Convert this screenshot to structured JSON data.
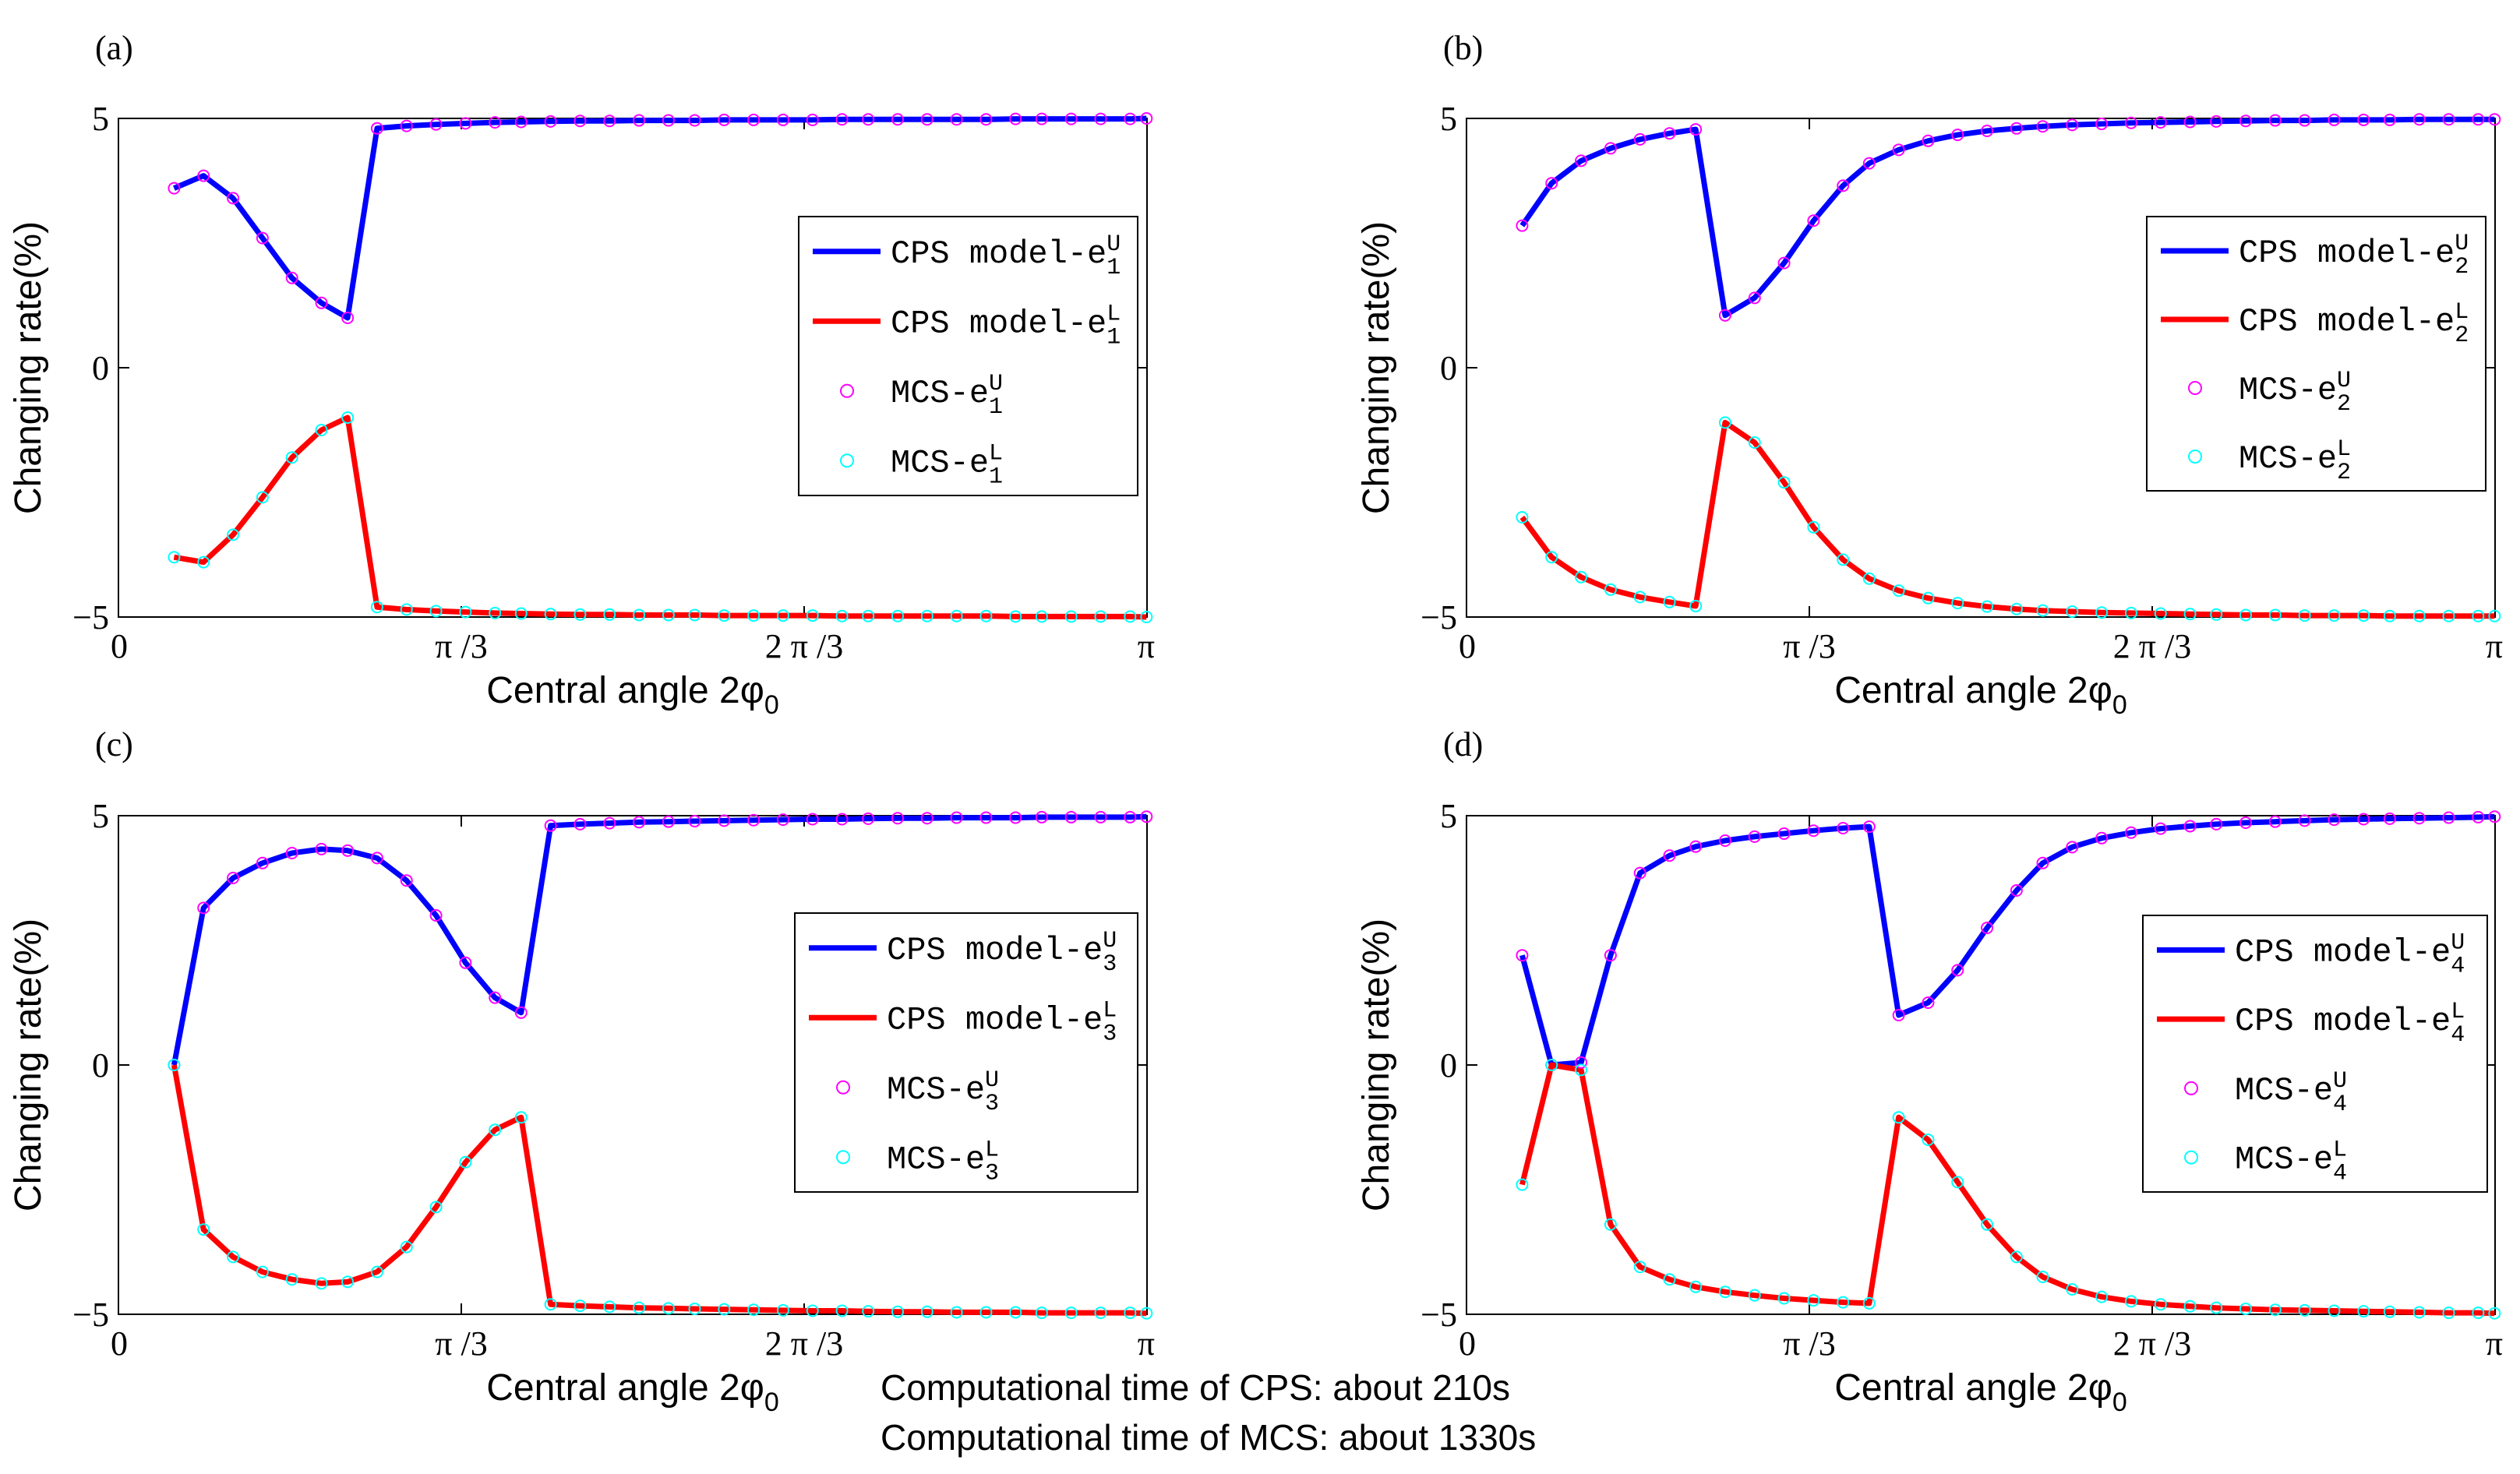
{
  "colors": {
    "cps_upper": "#0000ff",
    "cps_lower": "#ff0000",
    "mcs_upper": "#ff00ff",
    "mcs_lower": "#00ffff"
  },
  "footnote": {
    "line1": "Computational time of CPS: about 210s",
    "line2": "Computational time of MCS: about 1330s"
  },
  "chart_data": [
    {
      "panel_label": "(a)",
      "type": "line",
      "xlabel": "Central angle 2φ",
      "xlabel_sub": "0",
      "ylabel": "Changing rate(%)",
      "xlim": [
        0,
        3.14159
      ],
      "ylim": [
        -5,
        5
      ],
      "xticks": [
        0,
        1.0472,
        2.0944,
        3.14159
      ],
      "xtick_labels": [
        "0",
        "π /3",
        "2 π /3",
        "π"
      ],
      "yticks": [
        -5,
        0,
        5
      ],
      "ytick_labels": [
        "−5",
        "0",
        "5"
      ],
      "legend": [
        {
          "label": "CPS model-e",
          "sup": "U",
          "sub": "1",
          "kind": "line",
          "series": "cps_upper"
        },
        {
          "label": "CPS model-e",
          "sup": "L",
          "sub": "1",
          "kind": "line",
          "series": "cps_lower"
        },
        {
          "label": "MCS-e",
          "sup": "U",
          "sub": "1",
          "kind": "marker",
          "series": "mcs_upper"
        },
        {
          "label": "MCS-e",
          "sup": "L",
          "sub": "1",
          "kind": "marker",
          "series": "mcs_lower"
        }
      ],
      "x": [
        0.17,
        0.26,
        0.35,
        0.44,
        0.53,
        0.62,
        0.7,
        0.79,
        0.88,
        0.97,
        1.06,
        1.15,
        1.23,
        1.32,
        1.41,
        1.5,
        1.59,
        1.68,
        1.76,
        1.85,
        1.94,
        2.03,
        2.12,
        2.21,
        2.29,
        2.38,
        2.47,
        2.56,
        2.65,
        2.74,
        2.82,
        2.91,
        3.0,
        3.09,
        3.14
      ],
      "series": [
        {
          "name": "CPS model-e1U",
          "key": "cps_upper",
          "values": [
            3.6,
            3.85,
            3.4,
            2.6,
            1.8,
            1.3,
            1.0,
            4.8,
            4.85,
            4.88,
            4.9,
            4.92,
            4.93,
            4.94,
            4.95,
            4.95,
            4.96,
            4.96,
            4.96,
            4.97,
            4.97,
            4.97,
            4.97,
            4.98,
            4.98,
            4.98,
            4.98,
            4.98,
            4.98,
            4.99,
            4.99,
            4.99,
            4.99,
            4.99,
            5.0
          ]
        },
        {
          "name": "CPS model-e1L",
          "key": "cps_lower",
          "values": [
            -3.8,
            -3.9,
            -3.35,
            -2.6,
            -1.8,
            -1.25,
            -1.0,
            -4.8,
            -4.85,
            -4.88,
            -4.9,
            -4.92,
            -4.93,
            -4.94,
            -4.95,
            -4.95,
            -4.96,
            -4.96,
            -4.96,
            -4.97,
            -4.97,
            -4.97,
            -4.97,
            -4.98,
            -4.98,
            -4.98,
            -4.98,
            -4.98,
            -4.98,
            -4.99,
            -4.99,
            -4.99,
            -4.99,
            -4.99,
            -5.0
          ]
        }
      ]
    },
    {
      "panel_label": "(b)",
      "type": "line",
      "xlabel": "Central angle 2φ",
      "xlabel_sub": "0",
      "ylabel": "Changing rate(%)",
      "xlim": [
        0,
        3.14159
      ],
      "ylim": [
        -5,
        5
      ],
      "xticks": [
        0,
        1.0472,
        2.0944,
        3.14159
      ],
      "xtick_labels": [
        "0",
        "π /3",
        "2 π /3",
        "π"
      ],
      "yticks": [
        -5,
        0,
        5
      ],
      "ytick_labels": [
        "−5",
        "0",
        "5"
      ],
      "legend": [
        {
          "label": "CPS model-e",
          "sup": "U",
          "sub": "2",
          "kind": "line",
          "series": "cps_upper"
        },
        {
          "label": "CPS model-e",
          "sup": "L",
          "sub": "2",
          "kind": "line",
          "series": "cps_lower"
        },
        {
          "label": "MCS-e",
          "sup": "U",
          "sub": "2",
          "kind": "marker",
          "series": "mcs_upper"
        },
        {
          "label": "MCS-e",
          "sup": "L",
          "sub": "2",
          "kind": "marker",
          "series": "mcs_lower"
        }
      ],
      "x": [
        0.17,
        0.26,
        0.35,
        0.44,
        0.53,
        0.62,
        0.7,
        0.79,
        0.88,
        0.97,
        1.06,
        1.15,
        1.23,
        1.32,
        1.41,
        1.5,
        1.59,
        1.68,
        1.76,
        1.85,
        1.94,
        2.03,
        2.12,
        2.21,
        2.29,
        2.38,
        2.47,
        2.56,
        2.65,
        2.74,
        2.82,
        2.91,
        3.0,
        3.09,
        3.14
      ],
      "series": [
        {
          "name": "CPS model-e2U",
          "key": "cps_upper",
          "values": [
            2.85,
            3.7,
            4.15,
            4.4,
            4.58,
            4.7,
            4.78,
            1.05,
            1.4,
            2.1,
            2.95,
            3.65,
            4.1,
            4.37,
            4.55,
            4.67,
            4.75,
            4.8,
            4.84,
            4.87,
            4.89,
            4.91,
            4.92,
            4.93,
            4.94,
            4.95,
            4.96,
            4.96,
            4.97,
            4.97,
            4.97,
            4.98,
            4.98,
            4.98,
            4.98
          ]
        },
        {
          "name": "CPS model-e2L",
          "key": "cps_lower",
          "values": [
            -3.0,
            -3.8,
            -4.2,
            -4.45,
            -4.6,
            -4.7,
            -4.78,
            -1.1,
            -1.5,
            -2.3,
            -3.2,
            -3.85,
            -4.23,
            -4.47,
            -4.62,
            -4.72,
            -4.79,
            -4.84,
            -4.87,
            -4.89,
            -4.91,
            -4.92,
            -4.93,
            -4.94,
            -4.95,
            -4.96,
            -4.96,
            -4.97,
            -4.97,
            -4.97,
            -4.98,
            -4.98,
            -4.98,
            -4.98,
            -4.98
          ]
        }
      ]
    },
    {
      "panel_label": "(c)",
      "type": "line",
      "xlabel": "Central angle 2φ",
      "xlabel_sub": "0",
      "ylabel": "Changing rate(%)",
      "xlim": [
        0,
        3.14159
      ],
      "ylim": [
        -5,
        5
      ],
      "xticks": [
        0,
        1.0472,
        2.0944,
        3.14159
      ],
      "xtick_labels": [
        "0",
        "π /3",
        "2 π /3",
        "π"
      ],
      "yticks": [
        -5,
        0,
        5
      ],
      "ytick_labels": [
        "−5",
        "0",
        "5"
      ],
      "legend": [
        {
          "label": "CPS model-e",
          "sup": "U",
          "sub": "3",
          "kind": "line",
          "series": "cps_upper"
        },
        {
          "label": "CPS model-e",
          "sup": "L",
          "sub": "3",
          "kind": "line",
          "series": "cps_lower"
        },
        {
          "label": "MCS-e",
          "sup": "U",
          "sub": "3",
          "kind": "marker",
          "series": "mcs_upper"
        },
        {
          "label": "MCS-e",
          "sup": "L",
          "sub": "3",
          "kind": "marker",
          "series": "mcs_lower"
        }
      ],
      "x": [
        0.17,
        0.26,
        0.35,
        0.44,
        0.53,
        0.62,
        0.7,
        0.79,
        0.88,
        0.97,
        1.06,
        1.15,
        1.23,
        1.32,
        1.41,
        1.5,
        1.59,
        1.68,
        1.76,
        1.85,
        1.94,
        2.03,
        2.12,
        2.21,
        2.29,
        2.38,
        2.47,
        2.56,
        2.65,
        2.74,
        2.82,
        2.91,
        3.0,
        3.09,
        3.14
      ],
      "series": [
        {
          "name": "CPS model-e3U",
          "key": "cps_upper",
          "values": [
            0.0,
            3.15,
            3.75,
            4.05,
            4.25,
            4.33,
            4.3,
            4.15,
            3.7,
            3.0,
            2.05,
            1.35,
            1.05,
            4.8,
            4.83,
            4.85,
            4.87,
            4.88,
            4.89,
            4.9,
            4.91,
            4.92,
            4.93,
            4.93,
            4.94,
            4.95,
            4.95,
            4.96,
            4.96,
            4.96,
            4.97,
            4.97,
            4.97,
            4.97,
            4.98
          ]
        },
        {
          "name": "CPS model-e3L",
          "key": "cps_lower",
          "values": [
            0.0,
            -3.3,
            -3.85,
            -4.15,
            -4.3,
            -4.38,
            -4.35,
            -4.15,
            -3.65,
            -2.85,
            -1.95,
            -1.3,
            -1.05,
            -4.8,
            -4.83,
            -4.85,
            -4.87,
            -4.88,
            -4.89,
            -4.9,
            -4.91,
            -4.92,
            -4.93,
            -4.93,
            -4.94,
            -4.95,
            -4.95,
            -4.96,
            -4.96,
            -4.96,
            -4.97,
            -4.97,
            -4.97,
            -4.97,
            -4.98
          ]
        }
      ]
    },
    {
      "panel_label": "(d)",
      "type": "line",
      "xlabel": "Central angle 2φ",
      "xlabel_sub": "0",
      "ylabel": "Changing rate(%)",
      "xlim": [
        0,
        3.14159
      ],
      "ylim": [
        -5,
        5
      ],
      "xticks": [
        0,
        1.0472,
        2.0944,
        3.14159
      ],
      "xtick_labels": [
        "0",
        "π /3",
        "2 π /3",
        "π"
      ],
      "yticks": [
        -5,
        0,
        5
      ],
      "ytick_labels": [
        "−5",
        "0",
        "5"
      ],
      "legend": [
        {
          "label": "CPS model-e",
          "sup": "U",
          "sub": "4",
          "kind": "line",
          "series": "cps_upper"
        },
        {
          "label": "CPS model-e",
          "sup": "L",
          "sub": "4",
          "kind": "line",
          "series": "cps_lower"
        },
        {
          "label": "MCS-e",
          "sup": "U",
          "sub": "4",
          "kind": "marker",
          "series": "mcs_upper"
        },
        {
          "label": "MCS-e",
          "sup": "L",
          "sub": "4",
          "kind": "marker",
          "series": "mcs_lower"
        }
      ],
      "x": [
        0.17,
        0.26,
        0.35,
        0.44,
        0.53,
        0.62,
        0.7,
        0.79,
        0.88,
        0.97,
        1.06,
        1.15,
        1.23,
        1.32,
        1.41,
        1.5,
        1.59,
        1.68,
        1.76,
        1.85,
        1.94,
        2.03,
        2.12,
        2.21,
        2.29,
        2.38,
        2.47,
        2.56,
        2.65,
        2.74,
        2.82,
        2.91,
        3.0,
        3.09,
        3.14
      ],
      "series": [
        {
          "name": "CPS model-e4U",
          "key": "cps_upper",
          "values": [
            2.2,
            0.0,
            0.05,
            2.2,
            3.85,
            4.2,
            4.38,
            4.5,
            4.58,
            4.64,
            4.7,
            4.75,
            4.78,
            1.0,
            1.25,
            1.9,
            2.75,
            3.5,
            4.05,
            4.37,
            4.55,
            4.66,
            4.74,
            4.79,
            4.83,
            4.86,
            4.88,
            4.9,
            4.92,
            4.93,
            4.94,
            4.95,
            4.96,
            4.97,
            4.98
          ]
        },
        {
          "name": "CPS model-e4L",
          "key": "cps_lower",
          "values": [
            -2.4,
            0.0,
            -0.1,
            -3.2,
            -4.05,
            -4.3,
            -4.45,
            -4.55,
            -4.62,
            -4.68,
            -4.72,
            -4.76,
            -4.78,
            -1.05,
            -1.5,
            -2.35,
            -3.2,
            -3.85,
            -4.25,
            -4.5,
            -4.65,
            -4.74,
            -4.8,
            -4.84,
            -4.87,
            -4.89,
            -4.91,
            -4.92,
            -4.93,
            -4.94,
            -4.95,
            -4.96,
            -4.97,
            -4.97,
            -4.98
          ]
        }
      ]
    }
  ]
}
